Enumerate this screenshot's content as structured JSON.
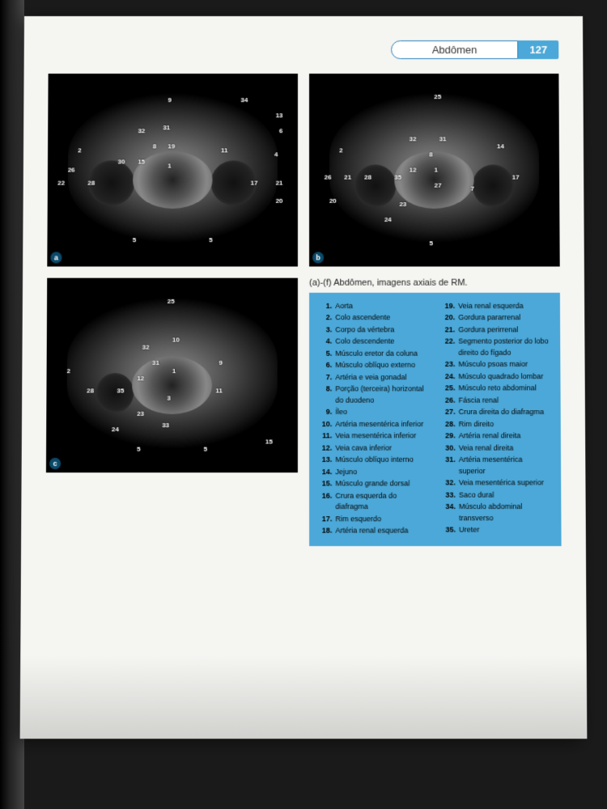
{
  "header": {
    "section": "Abdômen",
    "page_number": "127"
  },
  "caption": "(a)-(f) Abdômen, imagens axiais de RM.",
  "scans": {
    "a": {
      "corner": "a",
      "numbers": [
        "9",
        "34",
        "13",
        "6",
        "32",
        "31",
        "19",
        "2",
        "8",
        "11",
        "26",
        "30",
        "15",
        "1",
        "4",
        "22",
        "28",
        "17",
        "21",
        "20",
        "5",
        "5"
      ]
    },
    "b": {
      "corner": "b",
      "numbers": [
        "25",
        "32",
        "31",
        "2",
        "8",
        "14",
        "12",
        "1",
        "26",
        "21",
        "28",
        "35",
        "27",
        "17",
        "20",
        "23",
        "24",
        "5",
        "7"
      ]
    },
    "c": {
      "corner": "c",
      "numbers": [
        "25",
        "32",
        "10",
        "31",
        "1",
        "9",
        "2",
        "12",
        "28",
        "35",
        "11",
        "3",
        "23",
        "24",
        "33",
        "5",
        "5",
        "15"
      ]
    }
  },
  "legend": {
    "col1": [
      {
        "n": "1.",
        "t": "Aorta"
      },
      {
        "n": "2.",
        "t": "Colo ascendente"
      },
      {
        "n": "3.",
        "t": "Corpo da vértebra"
      },
      {
        "n": "4.",
        "t": "Colo descendente"
      },
      {
        "n": "5.",
        "t": "Músculo eretor da coluna"
      },
      {
        "n": "6.",
        "t": "Músculo oblíquo externo"
      },
      {
        "n": "7.",
        "t": "Artéria e veia gonadal"
      },
      {
        "n": "8.",
        "t": "Porção (terceira) horizontal do duodeno"
      },
      {
        "n": "9.",
        "t": "Íleo"
      },
      {
        "n": "10.",
        "t": "Artéria mesentérica inferior"
      },
      {
        "n": "11.",
        "t": "Veia mesentérica inferior"
      },
      {
        "n": "12.",
        "t": "Veia cava inferior"
      },
      {
        "n": "13.",
        "t": "Músculo oblíquo interno"
      },
      {
        "n": "14.",
        "t": "Jejuno"
      },
      {
        "n": "15.",
        "t": "Músculo grande dorsal"
      },
      {
        "n": "16.",
        "t": "Crura esquerda do diafragma"
      },
      {
        "n": "17.",
        "t": "Rim esquerdo"
      },
      {
        "n": "18.",
        "t": "Artéria renal esquerda"
      }
    ],
    "col2": [
      {
        "n": "19.",
        "t": "Veia renal esquerda"
      },
      {
        "n": "20.",
        "t": "Gordura pararrenal"
      },
      {
        "n": "21.",
        "t": "Gordura perirrenal"
      },
      {
        "n": "22.",
        "t": "Segmento posterior do lobo direito do fígado"
      },
      {
        "n": "23.",
        "t": "Músculo psoas maior"
      },
      {
        "n": "24.",
        "t": "Músculo quadrado lombar"
      },
      {
        "n": "25.",
        "t": "Músculo reto abdominal"
      },
      {
        "n": "26.",
        "t": "Fáscia renal"
      },
      {
        "n": "27.",
        "t": "Crura direita do diafragma"
      },
      {
        "n": "28.",
        "t": "Rim direito"
      },
      {
        "n": "29.",
        "t": "Artéria renal direita"
      },
      {
        "n": "30.",
        "t": "Veia renal direita"
      },
      {
        "n": "31.",
        "t": "Artéria mesentérica superior"
      },
      {
        "n": "32.",
        "t": "Veia mesentérica superior"
      },
      {
        "n": "33.",
        "t": "Saco dural"
      },
      {
        "n": "34.",
        "t": "Músculo abdominal transverso"
      },
      {
        "n": "35.",
        "t": "Ureter"
      }
    ]
  },
  "colors": {
    "accent": "#4ba8d8",
    "page_bg": "#f5f5f2",
    "outer_bg": "#1a1a1a"
  }
}
